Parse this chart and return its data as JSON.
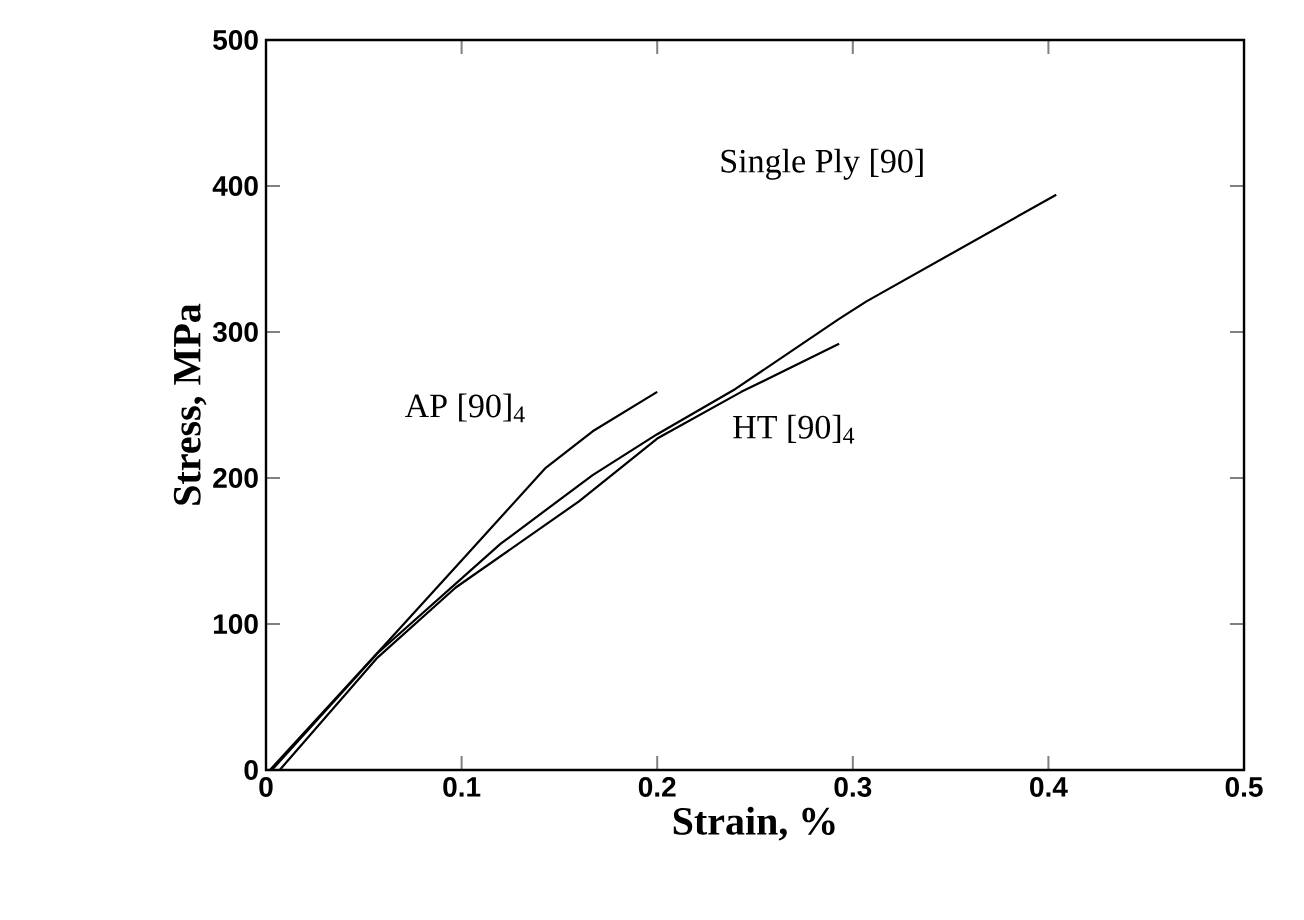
{
  "chart_data": {
    "type": "line",
    "xlabel": "Strain, %",
    "ylabel": "Stress,  MPa",
    "xlim": [
      0,
      0.5
    ],
    "ylim": [
      0,
      500
    ],
    "xticks": [
      0,
      0.1,
      0.2,
      0.3,
      0.4,
      0.5
    ],
    "yticks": [
      0,
      100,
      200,
      300,
      400,
      500
    ],
    "grid": false,
    "legend": false,
    "marker": "none",
    "line_style": "solid",
    "series": [
      {
        "name": "Single Ply [90]",
        "color": "#000000",
        "x": [
          0.003,
          0.057,
          0.12,
          0.167,
          0.2,
          0.24,
          0.293,
          0.307,
          0.404
        ],
        "values": [
          0,
          80,
          155,
          202,
          230,
          261,
          309,
          321,
          394
        ]
      },
      {
        "name": "AP [90]$_{4}$",
        "color": "#000000",
        "x": [
          0.002,
          0.063,
          0.103,
          0.143,
          0.167,
          0.2
        ],
        "values": [
          0,
          89,
          148,
          207,
          232,
          259
        ]
      },
      {
        "name": "HT [90]$_{4}$",
        "color": "#000000",
        "x": [
          0.007,
          0.057,
          0.097,
          0.16,
          0.2,
          0.243,
          0.293
        ],
        "values": [
          0,
          77,
          125,
          184,
          227,
          259,
          292
        ]
      }
    ]
  }
}
